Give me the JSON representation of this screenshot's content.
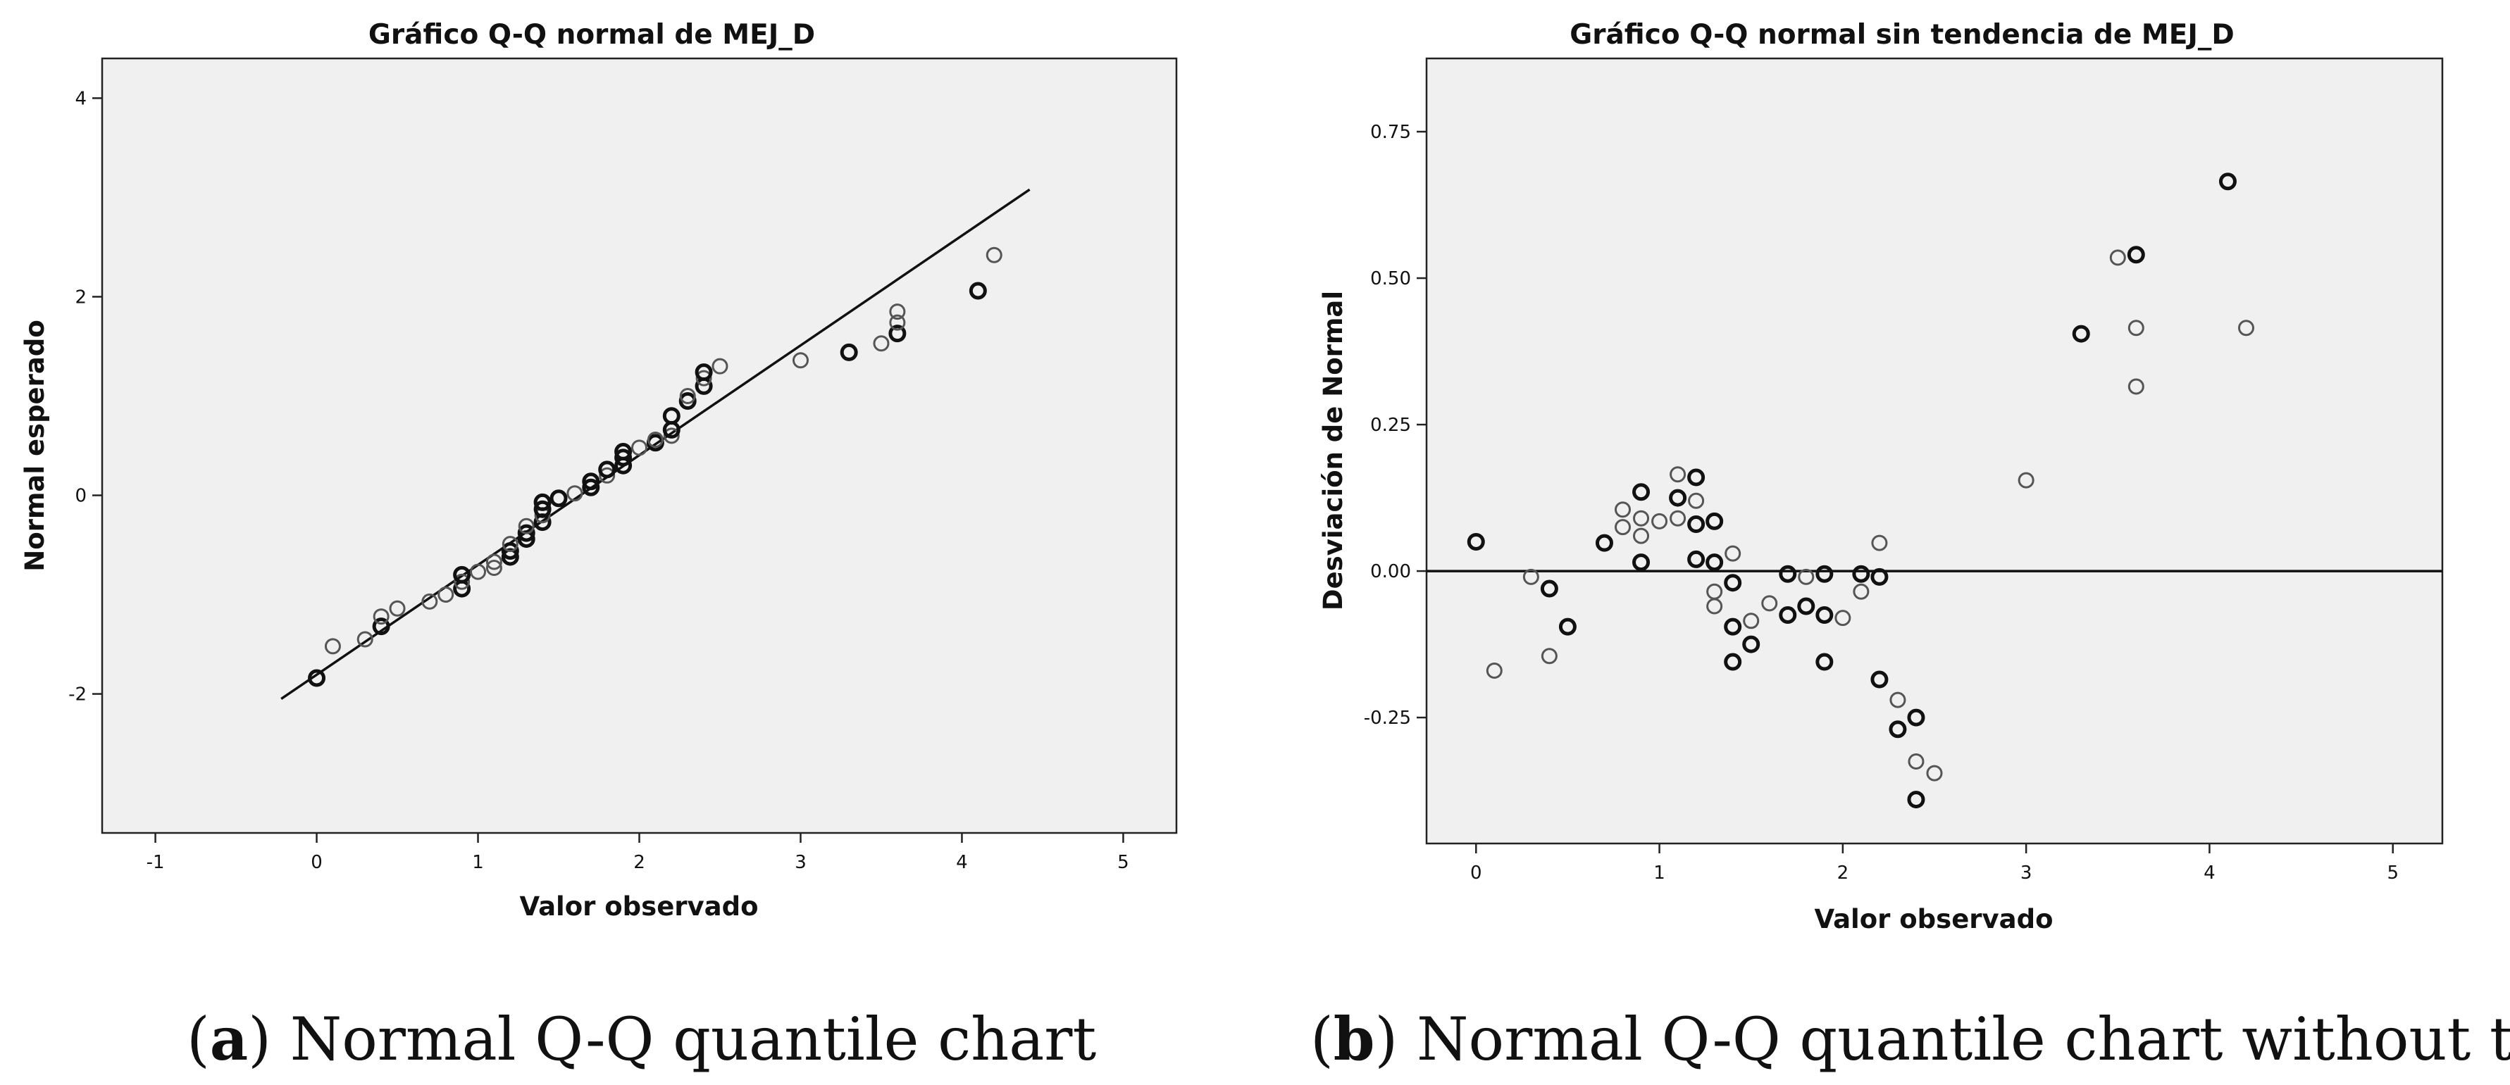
{
  "chart_data": [
    {
      "type": "scatter",
      "id": "a",
      "title": "Gráfico Q-Q normal de MEJ_D",
      "xlabel": "Valor observado",
      "ylabel": "Normal esperado",
      "xlim": [
        -1.33,
        5.33
      ],
      "ylim": [
        -3.4,
        4.4
      ],
      "xticks": [
        -1,
        0,
        1,
        2,
        3,
        4,
        5
      ],
      "xtick_labels": [
        "-1",
        "0",
        "1",
        "2",
        "3",
        "4",
        "5"
      ],
      "yticks": [
        -2,
        0,
        2,
        4
      ],
      "ytick_labels": [
        "-2",
        "0",
        "2",
        "4"
      ],
      "reference_line": {
        "x": [
          -0.22,
          4.42
        ],
        "y": [
          -2.05,
          3.08
        ]
      },
      "points": [
        {
          "x": 0.0,
          "y": -1.84,
          "dark": true
        },
        {
          "x": 0.1,
          "y": -1.52,
          "dark": false
        },
        {
          "x": 0.3,
          "y": -1.45,
          "dark": false
        },
        {
          "x": 0.4,
          "y": -1.32,
          "dark": true
        },
        {
          "x": 0.4,
          "y": -1.22,
          "dark": false
        },
        {
          "x": 0.5,
          "y": -1.14,
          "dark": false
        },
        {
          "x": 0.7,
          "y": -1.07,
          "dark": false
        },
        {
          "x": 0.8,
          "y": -1.0,
          "dark": false
        },
        {
          "x": 0.9,
          "y": -0.94,
          "dark": true
        },
        {
          "x": 0.9,
          "y": -0.87,
          "dark": false
        },
        {
          "x": 0.9,
          "y": -0.8,
          "dark": true
        },
        {
          "x": 1.0,
          "y": -0.77,
          "dark": false
        },
        {
          "x": 1.1,
          "y": -0.73,
          "dark": false
        },
        {
          "x": 1.1,
          "y": -0.67,
          "dark": false
        },
        {
          "x": 1.2,
          "y": -0.62,
          "dark": true
        },
        {
          "x": 1.2,
          "y": -0.56,
          "dark": true
        },
        {
          "x": 1.2,
          "y": -0.49,
          "dark": false
        },
        {
          "x": 1.3,
          "y": -0.44,
          "dark": true
        },
        {
          "x": 1.3,
          "y": -0.38,
          "dark": true
        },
        {
          "x": 1.3,
          "y": -0.31,
          "dark": false
        },
        {
          "x": 1.4,
          "y": -0.27,
          "dark": true
        },
        {
          "x": 1.4,
          "y": -0.2,
          "dark": false
        },
        {
          "x": 1.4,
          "y": -0.14,
          "dark": true
        },
        {
          "x": 1.4,
          "y": -0.07,
          "dark": true
        },
        {
          "x": 1.5,
          "y": -0.03,
          "dark": true
        },
        {
          "x": 1.6,
          "y": 0.02,
          "dark": false
        },
        {
          "x": 1.7,
          "y": 0.08,
          "dark": true
        },
        {
          "x": 1.7,
          "y": 0.14,
          "dark": true
        },
        {
          "x": 1.8,
          "y": 0.2,
          "dark": false
        },
        {
          "x": 1.8,
          "y": 0.26,
          "dark": true
        },
        {
          "x": 1.9,
          "y": 0.3,
          "dark": true
        },
        {
          "x": 1.9,
          "y": 0.38,
          "dark": true
        },
        {
          "x": 1.9,
          "y": 0.44,
          "dark": true
        },
        {
          "x": 2.0,
          "y": 0.48,
          "dark": false
        },
        {
          "x": 2.1,
          "y": 0.53,
          "dark": true
        },
        {
          "x": 2.1,
          "y": 0.56,
          "dark": false
        },
        {
          "x": 2.2,
          "y": 0.6,
          "dark": false
        },
        {
          "x": 2.2,
          "y": 0.66,
          "dark": true
        },
        {
          "x": 2.2,
          "y": 0.8,
          "dark": true
        },
        {
          "x": 2.3,
          "y": 0.95,
          "dark": true
        },
        {
          "x": 2.3,
          "y": 1.0,
          "dark": false
        },
        {
          "x": 2.4,
          "y": 1.1,
          "dark": true
        },
        {
          "x": 2.4,
          "y": 1.18,
          "dark": false
        },
        {
          "x": 2.4,
          "y": 1.24,
          "dark": true
        },
        {
          "x": 2.5,
          "y": 1.3,
          "dark": false
        },
        {
          "x": 3.0,
          "y": 1.36,
          "dark": false
        },
        {
          "x": 3.3,
          "y": 1.44,
          "dark": true
        },
        {
          "x": 3.5,
          "y": 1.53,
          "dark": false
        },
        {
          "x": 3.6,
          "y": 1.63,
          "dark": true
        },
        {
          "x": 3.6,
          "y": 1.74,
          "dark": false
        },
        {
          "x": 3.6,
          "y": 1.85,
          "dark": false
        },
        {
          "x": 4.1,
          "y": 2.06,
          "dark": true
        },
        {
          "x": 4.2,
          "y": 2.42,
          "dark": false
        }
      ]
    },
    {
      "type": "scatter",
      "id": "b",
      "title": "Gráfico Q-Q normal sin tendencia de MEJ_D",
      "xlabel": "Valor observado",
      "ylabel": "Desviación de Normal",
      "xlim": [
        -0.27,
        5.27
      ],
      "ylim": [
        -0.465,
        0.875
      ],
      "xticks": [
        0,
        1,
        2,
        3,
        4,
        5
      ],
      "xtick_labels": [
        "0",
        "1",
        "2",
        "3",
        "4",
        "5"
      ],
      "yticks": [
        -0.25,
        0.0,
        0.25,
        0.5,
        0.75
      ],
      "ytick_labels": [
        "-0.25",
        "0.00",
        "0.25",
        "0.50",
        "0.75"
      ],
      "reference_line": {
        "y": 0.0
      },
      "points": [
        {
          "x": 0.0,
          "y": 0.05,
          "dark": true
        },
        {
          "x": 0.1,
          "y": -0.17,
          "dark": false
        },
        {
          "x": 0.3,
          "y": -0.01,
          "dark": false
        },
        {
          "x": 0.4,
          "y": -0.03,
          "dark": true
        },
        {
          "x": 0.4,
          "y": -0.145,
          "dark": false
        },
        {
          "x": 0.5,
          "y": -0.095,
          "dark": true
        },
        {
          "x": 0.7,
          "y": 0.048,
          "dark": true
        },
        {
          "x": 0.8,
          "y": 0.105,
          "dark": false
        },
        {
          "x": 0.8,
          "y": 0.075,
          "dark": false
        },
        {
          "x": 0.9,
          "y": 0.135,
          "dark": true
        },
        {
          "x": 0.9,
          "y": 0.09,
          "dark": false
        },
        {
          "x": 0.9,
          "y": 0.06,
          "dark": false
        },
        {
          "x": 0.9,
          "y": 0.015,
          "dark": true
        },
        {
          "x": 1.0,
          "y": 0.085,
          "dark": false
        },
        {
          "x": 1.1,
          "y": 0.165,
          "dark": false
        },
        {
          "x": 1.1,
          "y": 0.125,
          "dark": true
        },
        {
          "x": 1.1,
          "y": 0.09,
          "dark": false
        },
        {
          "x": 1.2,
          "y": 0.16,
          "dark": true
        },
        {
          "x": 1.2,
          "y": 0.12,
          "dark": false
        },
        {
          "x": 1.2,
          "y": 0.08,
          "dark": true
        },
        {
          "x": 1.2,
          "y": 0.02,
          "dark": true
        },
        {
          "x": 1.3,
          "y": 0.085,
          "dark": true
        },
        {
          "x": 1.3,
          "y": 0.015,
          "dark": true
        },
        {
          "x": 1.3,
          "y": -0.035,
          "dark": false
        },
        {
          "x": 1.3,
          "y": -0.06,
          "dark": false
        },
        {
          "x": 1.4,
          "y": 0.03,
          "dark": false
        },
        {
          "x": 1.4,
          "y": -0.02,
          "dark": true
        },
        {
          "x": 1.4,
          "y": -0.095,
          "dark": true
        },
        {
          "x": 1.4,
          "y": -0.155,
          "dark": true
        },
        {
          "x": 1.5,
          "y": -0.085,
          "dark": false
        },
        {
          "x": 1.5,
          "y": -0.125,
          "dark": true
        },
        {
          "x": 1.6,
          "y": -0.055,
          "dark": false
        },
        {
          "x": 1.7,
          "y": -0.005,
          "dark": true
        },
        {
          "x": 1.7,
          "y": -0.075,
          "dark": true
        },
        {
          "x": 1.8,
          "y": -0.01,
          "dark": false
        },
        {
          "x": 1.8,
          "y": -0.06,
          "dark": true
        },
        {
          "x": 1.9,
          "y": -0.005,
          "dark": true
        },
        {
          "x": 1.9,
          "y": -0.075,
          "dark": true
        },
        {
          "x": 1.9,
          "y": -0.155,
          "dark": true
        },
        {
          "x": 2.0,
          "y": -0.08,
          "dark": false
        },
        {
          "x": 2.1,
          "y": -0.005,
          "dark": true
        },
        {
          "x": 2.1,
          "y": -0.035,
          "dark": false
        },
        {
          "x": 2.2,
          "y": 0.048,
          "dark": false
        },
        {
          "x": 2.2,
          "y": -0.01,
          "dark": true
        },
        {
          "x": 2.2,
          "y": -0.185,
          "dark": true
        },
        {
          "x": 2.3,
          "y": -0.22,
          "dark": false
        },
        {
          "x": 2.3,
          "y": -0.27,
          "dark": true
        },
        {
          "x": 2.4,
          "y": -0.25,
          "dark": true
        },
        {
          "x": 2.4,
          "y": -0.325,
          "dark": false
        },
        {
          "x": 2.4,
          "y": -0.39,
          "dark": true
        },
        {
          "x": 2.5,
          "y": -0.345,
          "dark": false
        },
        {
          "x": 3.0,
          "y": 0.155,
          "dark": false
        },
        {
          "x": 3.3,
          "y": 0.405,
          "dark": true
        },
        {
          "x": 3.5,
          "y": 0.535,
          "dark": false
        },
        {
          "x": 3.6,
          "y": 0.54,
          "dark": true
        },
        {
          "x": 3.6,
          "y": 0.415,
          "dark": false
        },
        {
          "x": 3.6,
          "y": 0.315,
          "dark": false
        },
        {
          "x": 4.1,
          "y": 0.665,
          "dark": true
        },
        {
          "x": 4.2,
          "y": 0.415,
          "dark": false
        }
      ]
    }
  ],
  "captions": {
    "a": {
      "letter": "a",
      "text": " Normal Q-Q quantile chart"
    },
    "b": {
      "letter": "b",
      "text": " Normal Q-Q quantile chart without trend"
    }
  }
}
